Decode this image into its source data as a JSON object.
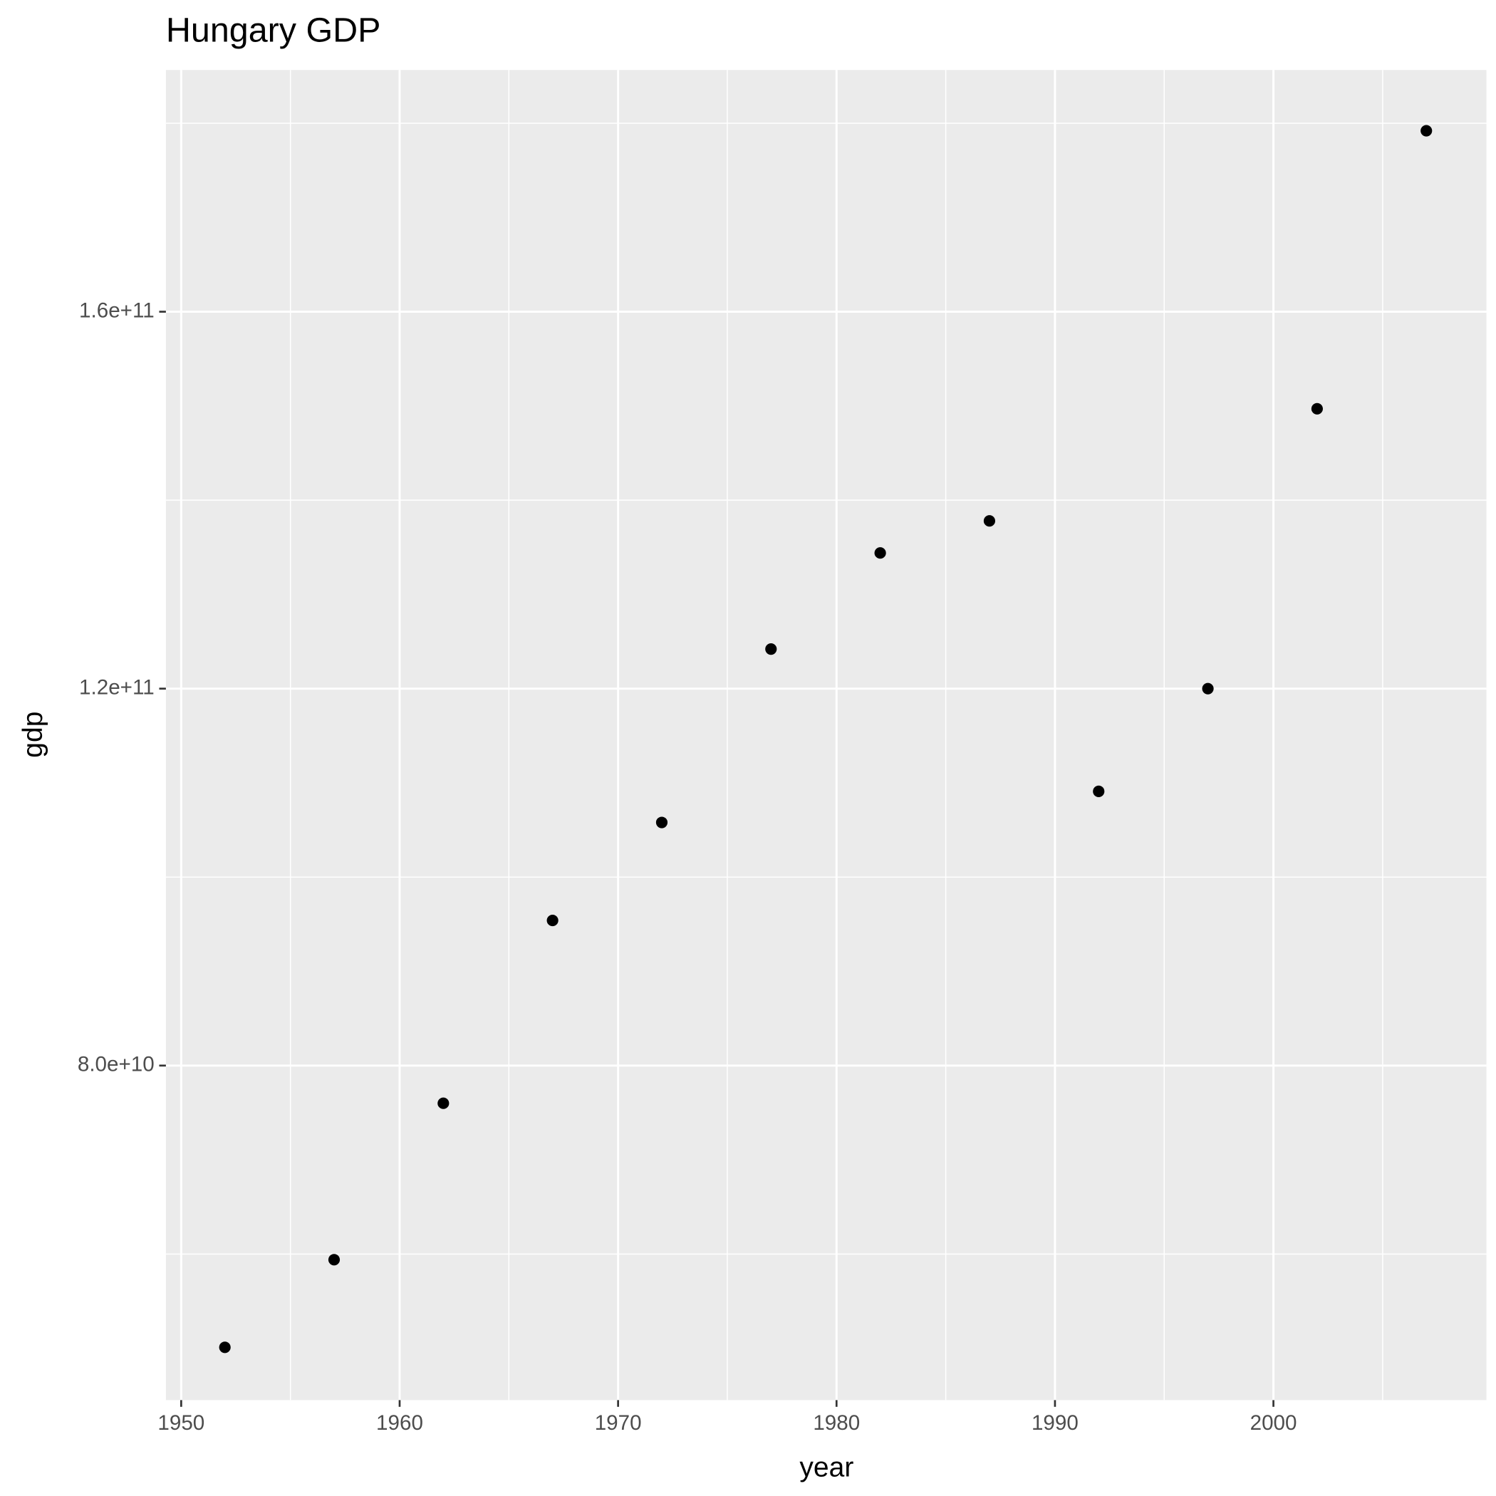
{
  "chart_data": {
    "type": "scatter",
    "title": "Hungary GDP",
    "x_label": "year",
    "y_label": "gdp",
    "x": [
      1952,
      1957,
      1962,
      1967,
      1972,
      1977,
      1982,
      1987,
      1992,
      1997,
      2002,
      2007
    ],
    "values": [
      50100000000,
      59400000000,
      76000000000,
      95400000000,
      105800000000,
      124200000000,
      134400000000,
      137800000000,
      109100000000,
      120000000000,
      149700000000,
      179200000000
    ],
    "color": "#000000",
    "xlim": [
      1949.3,
      2009.75
    ],
    "ylim": [
      44500000000,
      185650000000
    ],
    "xticks": [
      1950,
      1960,
      1970,
      1980,
      1990,
      2000
    ],
    "yticks": [
      {
        "value": 80000000000,
        "label": "8.0e+10"
      },
      {
        "value": 120000000000,
        "label": "1.2e+11"
      },
      {
        "value": 160000000000,
        "label": "1.6e+11"
      }
    ],
    "x_minor_ticks": [
      1955,
      1965,
      1975,
      1985,
      1995,
      2005
    ],
    "y_minor_ticks": [
      60000000000,
      100000000000,
      140000000000,
      180000000000
    ],
    "grid": true
  }
}
